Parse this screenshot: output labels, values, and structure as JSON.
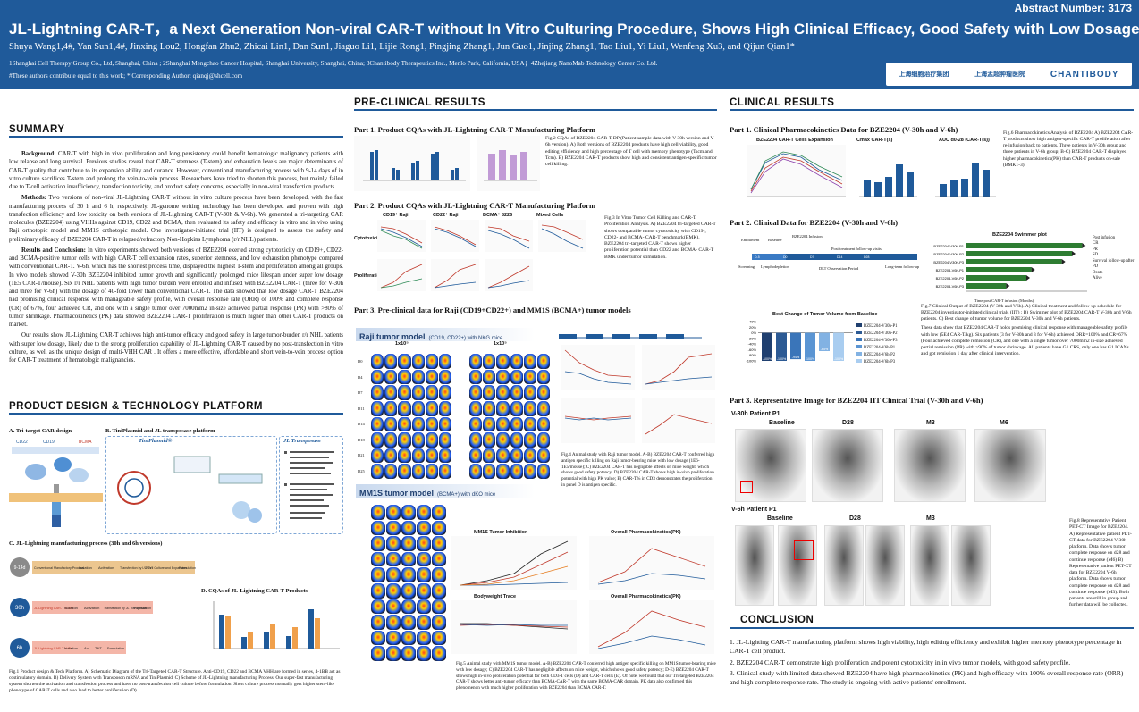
{
  "header": {
    "abstract_number": "Abstract Number: 3173",
    "title": "JL-Lightning CAR-T，a Next Generation Non-viral CAR-T without In Vitro Culturing Procedure, Shows High Clinical Efficacy, Good Safety with Low Dosage",
    "authors": "Shuya Wang1,4#, Yan Sun1,4#, Jinxing Lou2, Hongfan Zhu2, Zhicai Lin1, Dan Sun1, Jiaguo Li1, Lijie Rong1, Pingjing Zhang1, Jun Guo1, Jinjing Zhang1, Tao Liu1, Yi Liu1, Wenfeng Xu3, and Qijun Qian1*",
    "affiliations": "1Shanghai Cell Therapy Group Co., Ltd, Shanghai, China ; 2Shanghai Mengchao Cancer Hospital, Shanghai University, Shanghai, China; 3Chantibody Therapeutics Inc., Menlo Park, California, USA；4Zhejiang NanoMab Technology Center Co. Ltd.",
    "contribution": "#These authors contribute equal to this work; * Corresponding Author: qianqj@shcell.com",
    "logos": [
      "上海细胞治疗集团",
      "上海孟超肿瘤医院",
      "CHANTIBODY"
    ]
  },
  "sections": {
    "summary": "SUMMARY",
    "preclinical": "PRE-CLINICAL RESULTS",
    "clinical": "CLINICAL RESULTS",
    "product_design": "PRODUCT DESIGN & TECHNOLOGY PLATFORM",
    "conclusion": "CONCLUSION"
  },
  "summary": {
    "background_label": "Background:",
    "background": "CAR-T with high in vivo proliferation and long persistency could benefit hematologic malignancy patients with low relapse and long survival. Previous studies reveal that CAR-T stemness (T-stem) and exhaustion levels are major determinants of CAR-T quality that contribute to its expansion ability and durance. However, conventional manufacturing process with 9-14 days of in vitro culture sacrifices T-stem and prolong the vein-to-vein process. Researchers have tried to shorten this process, but mainly failed due to T-cell activation insufficiency, transfection toxicity, and product safety concerns, especially in non-viral transfection products.",
    "methods_label": "Methods:",
    "methods": "Two versions of non-viral JL-Lightning CAR-T without in vitro culture process have been developed, with the fast manufacturing process of 30 h and 6 h, respectively. JL-genome writing technology has been developed and proven with high transfection efficiency and low toxicity on both versions of JL-Lightning CAR-T (V-30h & V-6h). We generated a tri-targeting CAR molecules (BZE2204) using VHHs against CD19, CD22 and BCMA, then evaluated its safety and efficacy in vitro and in vivo using Raji orthotopic model and MM1S orthotopic model. One investigator-initiated trial (IIT) is designed to assess the safety and preliminary efficacy of BZE2204 CAR-T in relapsed/refractory Non-Hopkins Lymphoma (r/r NHL) patients.",
    "results_label": "Results and Conclusion:",
    "results": "In vitro experiments showed both versions of BZE2204 exerted strong cytotoxicity on CD19+, CD22- and BCMA-positive tumor cells with high CAR-T cell expansion rates, superior stemness, and low exhaustion phenotype compared with conventional CAR-T. V-6h, which has the shortest process time, displayed the highest T-stem and proliferation among all groups. In vivo models showed V-30h BZE2204 inhibited tumor growth and significantly prolonged mice lifespan under super low dosage (1E5 CAR-T/mouse). Six r/r NHL patients with high tumor burden were enrolled and infused with BZE2204 CAR-T (three for V-30h and three for V-6h) with the dosage of 40-fold lower than conventional CAR-T. The data showed that low dosage CAR-T BZE2204 had promising clinical response with manageable safety profile, with overall response rate (ORR) of 100% and complete response (CR) of 67%, four achieved CR, and one with a single tumor over 7000mm2 in-size achieved partial response (PR) with >80% of tumor shrinkage. Pharmacokinetics (PK) data showed BZE2204 CAR-T proliferation is much higher than other CAR-T products on market.",
    "closing": "Our results show JL-Lightning CAR-T achieves high anti-tumor efficacy and good safety in large tumor-burden r/r NHL patients with super low dosage, likely due to the strong proliferation capability of JL-Lightning CAR-T caused by no post-transfection in vitro culture, as well as the unique design of multi-VHH CAR . It offers a more effective, affordable and short vein-to-vein process option for CAR-T treatment of hematologic malignancies."
  },
  "product": {
    "a_label": "A.  Tri-target CAR design",
    "b_label": "B.  TiniPlasmid and JL transposase platform",
    "tiniplasmid": "TiniPlasmid®",
    "transposase": "JL Transposase",
    "c_label": "C.  JL-Lightning manufacturing process (30h and 6h versions)",
    "d_label": "D.  CQAs of JL-Lightning CAR-T Products",
    "targets": [
      "CD22",
      "CD19",
      "BCMA"
    ],
    "process_rows": [
      {
        "badge": "9-14d",
        "name": "Conventional Manufactory Process",
        "steps": [
          "Isolation",
          "Activation",
          "Transfection by LV/RV",
          "T Cell Culture and Expansion",
          "Formulation"
        ]
      },
      {
        "badge": "30h",
        "name": "JL-Lightning CAR-T V-30h",
        "steps": [
          "Isolation",
          "Activation",
          "Transfection by JL Transposon",
          "Formulation"
        ]
      },
      {
        "badge": "6h",
        "name": "JL-Lightning CAR-T V-6h",
        "steps": [
          "Isolation",
          "Act",
          "TNT",
          "Formulation"
        ]
      }
    ],
    "fig_caption": "Fig.1 Product design & Tech Platform. A) Schematic Diagram of the Tri-Targeted CAR-T Structure. Anti-CD19, CD22 and BCMA VHH are formed in series, 4-1BB act as costimulatory domain. B) Delivery System with Transposon mRNA and TiniPlasmid. C) Scheme of JL-Lightning manufacturing Process. Our super-fast manufacturing system shorten the activation and transfection process and have no post-transfection cell culture before formulation. Short culture process normally gets higher stem-like phenotype of CAR-T cells and also lead to better proliferation (D)."
  },
  "preclinical": {
    "part1": "Part 1. Product CQAs with JL-Lightning CAR-T Manufacturing Platform",
    "part2": "Part 2. Product CQAs with JL-Lightning CAR-T Manufacturing Platform",
    "part3": "Part 3. Pre-clinical data for Raji (CD19+CD22+) and MM1S (BCMA+) tumor models",
    "fig2": "Fig.2 CQAs of BZE2204 CAR-T DP (Patient sample data with V-30h version and V-6h version). A) Both versions of BZE2204 products have high cell viability, good editing efficiency and high percentage of T cell with memory phenotype (Tscm and Tcm). B) BZE2204 CAR-T products show high and consistent antigen-specific tumor cell killing.",
    "fig3": "Fig.3 In Vitro Tumor Cell Killing and CAR-T Proliferation Analysis. A) BZE2204 tri-targeted CAR-T shows comparable tumor cytotoxicity with CD19-, CD22- and BCMA- CAR-T benchmark(BMK). BZE2204 tri-targeted CAR-T shows higher proliferation potential than CD22 and BCMA- CAR-T BMK under tumor stimulation.",
    "fig3_titles": [
      "CD19⁺ Raji",
      "CD22⁺ Raji",
      "BCMA⁺ 8226",
      "Mixed Cells"
    ],
    "fig3_rows": [
      "Cytotoxicity",
      "Proliferation"
    ],
    "raji_title": "Raji tumor model",
    "raji_sub": "(CD19, CD22+) with NKG mice",
    "mm1s_title": "MM1S tumor model",
    "mm1s_sub": "(BCMA+) with dKO mice",
    "dose": "1x10⁵",
    "groups": [
      "Vehicle",
      "Mock-T",
      "2204"
    ],
    "days": [
      "D0",
      "D4",
      "D7",
      "D11",
      "D14",
      "D18",
      "D21",
      "D25"
    ],
    "fig4": "Fig.4 Animal study with Raji tumor model. A-B) BZE2204 CAR-T conferred high antigen specific killing on Raji tumor-bearing mice with low dosage (1E6-1E5/mouse); C) BZE2204 CAR-T has negligible affects on mice weight, which shows good safety potency; D) BZE2204 CAR-T shows high in-vivo proliferation potential with high PK value; E) CAR-T% in CD3 demonstrates the proliferation in panel D is antigen specific.",
    "fig5": "Fig.5 Animal study with MM1S tumor model. A-B) BZE2204 CAR-T conferred high antigen specific killing on MM1S tumor-bearing mice with low dosage; C) BZE2204 CAR-T has negligible affects on mice weight, which shows good safety potency; D-E) BZE2204 CAR-T shows high in-vivo proliferation potential for both CD3-T cells (D) and CAR-T cells (E). Of note, we found that our Tri-targeted BZE2204 CAR-T shows better anti-tumor efficacy than BCMA-CAR-T with the same BCMA-CAR domain. PK data also confirmed this phenomenon with much higher proliferation with BZE2204 than BCMA CAR-T.",
    "mm1s_charts": [
      "MM1S Tumor Inhibition",
      "Overall Pharmacokinetics(PK)",
      "Bodyweight Trace",
      "Overall Pharmacokinetics(PK)"
    ],
    "mm1s_legend": [
      "Vehicle",
      "Mock-T",
      "BZE2204",
      "BCMA-CAR-T"
    ]
  },
  "clinical": {
    "part1": "Part 1. Clinical Pharmacokinetics Data for BZE2204 (V-30h and V-6h)",
    "part2": "Part 2. Clinical Data for BZE2204 (V-30h and V-6h)",
    "part3": "Part 3. Representative Image for BZE2204 IIT Clinical Trial (V-30h and V-6h)",
    "fig6": "Fig.6 Pharmacokinetics Analysis of BZE2204 A) BZE2204 CAR-T products show high antigen-specific CAR-T proliferation after re-infusion back to patients. Three patients in V-30h group and three patients in V-6h group; B-C) BZE2204 CAR-T displayed higher pharmacokinetics(PK) than CAR-T products on-sale (BMK1-3).",
    "fig7": "Fig.7 Clinical Output of BZE2204 (V-30h and V6h). A) Clinical treatment and follow-up schedule for BZE2204 investigator-initiated clinical trials (IIT) ; B) Swimmer plot of BZE2204 CAR-T V-30h and V-6h patients. C) Best change of tumor volume for BZE2204 V-30h and V-6h patients.",
    "fig7b": "These data show that BZE2204 CAR-T holds promising clinical response with manageable safety profile with low (5E4 CAR-T/kg). Six patients (3 for V-30h and 3 for V-6h) achieved ORR=100% and CR=67% (Four achieved complete remission (CR), and one with a single tumor over 7000mm2 in-size achieved partial remission (PR) with >90% of tumor shrinkage. All patients have G1 CRS, only one has G1 ICANs and got remission 1 day after clinical intervention.",
    "fig8": "Fig.8 Representative Patient PET-CT Image for BZE2204. A) Representative patient PET-CT data for BZE2204 V-30h platform. Data shows tumor complete response on d28 and continue response (M6) B) Representative patient PET-CT data for BZE2204 V-6h platform. Data shows tumor complete response on d28 and continue response (M3). Both patients are still in group and further data will be collected.",
    "pk_titles": [
      "BZE2204 CAR-T Cells Expansion",
      "Cmax CAR-T(s)",
      "AUC d0-28 (CAR-T(s))"
    ],
    "pk_series": [
      "V-30h-P1",
      "V-30h-P2",
      "V-30h-P3",
      "V-6h-P1",
      "V-6h-P2",
      "V-6h-P3"
    ],
    "pk_xlabel": "Days post infusion",
    "swimmer_title": "BZE2204 Swimmer plot",
    "swimmer_patients": [
      "BZE2204-V30h-P1",
      "BZE2204-V30h-P2",
      "BZE2204-V30h-P3",
      "BZE2204-V6h-P1",
      "BZE2204-V6h-P2",
      "BZE2204-V6h-P3"
    ],
    "swimmer_legend": [
      "Post infusion",
      "CR",
      "PR",
      "SD",
      "Survival follow-up after PD",
      "Death",
      "Alive"
    ],
    "swimmer_xlabel": "Time post CAR-T infusion (Months)",
    "tumor_title": "Best Change of Tumor Volume from Baseline",
    "schedule_labels": [
      "Enrollment",
      "Baseline",
      "BZE2204 Infusion",
      "Post-treatment follow-up visits",
      "Screening",
      "Lymphodepletion",
      "DLT Observation Period",
      "Long-term follow-up"
    ],
    "pet_v30": "V-30h Patient P1",
    "pet_v6": "V-6h Patient P1",
    "pet_v30_times": [
      "Baseline",
      "D28",
      "M3",
      "M6"
    ],
    "pet_v6_times": [
      "Baseline",
      "D28",
      "M3"
    ]
  },
  "conclusion": [
    "1. JL-Lighting CAR-T manufacturing platform shows high viability, high editing efficiency and exhibit higher memory phenotype percentage in CAR-T cell product.",
    "2. BZE2204 CAR-T demonstrate high proliferation and potent cytotoxicity in in vivo tumor models, with good safety profile.",
    "3. Clinical study with limited data showed BZE2204 have high pharmacokinetics (PK) and high efficacy with 100% overall response rate (ORR) and high complete response rate.  The study is ongoing with active patients' enrollment."
  ],
  "chart_data": [
    {
      "type": "bar",
      "title": "Best Change of Tumor Volume from Baseline",
      "categories": [
        "BZE2204-V30h-P1",
        "BZE2204-V30h-P2",
        "BZE2204-V30h-P3",
        "BZE2204-V6h-P1",
        "BZE2204-V6h-P2",
        "BZE2204-V6h-P3"
      ],
      "values": [
        -100,
        -100,
        -94,
        -100,
        -65,
        -100
      ],
      "ylim": [
        -100,
        40
      ],
      "ylabel": ""
    },
    {
      "type": "bar",
      "title": "BZE2204 Swimmer plot",
      "categories": [
        "BZE2204-V30h-P1",
        "BZE2204-V30h-P2",
        "BZE2204-V30h-P3",
        "BZE2204-V6h-P1",
        "BZE2204-V6h-P2",
        "BZE2204-V6h-P3"
      ],
      "values": [
        11.5,
        10.5,
        9.5,
        6.5,
        6,
        4
      ],
      "xlabel": "Time post CAR-T infusion (Months)",
      "xlim": [
        0,
        12
      ]
    }
  ]
}
